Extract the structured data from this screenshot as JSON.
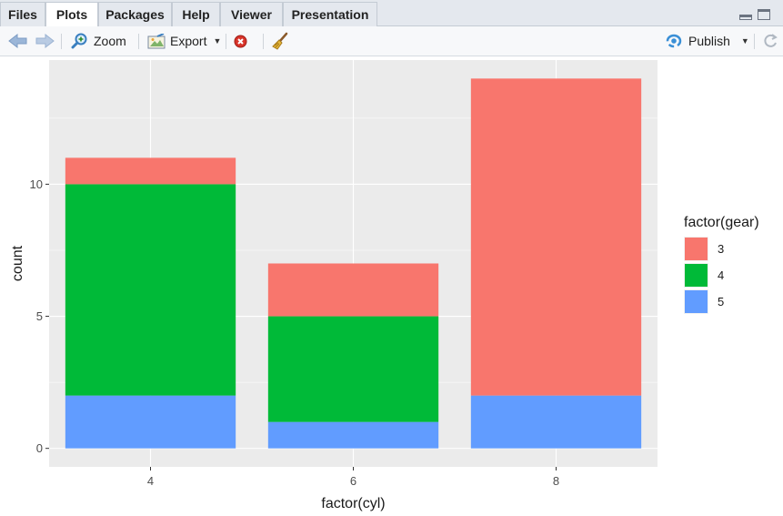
{
  "tabs": [
    {
      "label": "Files",
      "active": false
    },
    {
      "label": "Plots",
      "active": true
    },
    {
      "label": "Packages",
      "active": false
    },
    {
      "label": "Help",
      "active": false
    },
    {
      "label": "Viewer",
      "active": false
    },
    {
      "label": "Presentation",
      "active": false
    }
  ],
  "toolbar": {
    "zoom_label": "Zoom",
    "export_label": "Export",
    "publish_label": "Publish"
  },
  "colors": {
    "panel_bg": "#ebebeb",
    "grid": "#ffffff",
    "gear3": "#f8766d",
    "gear4": "#00ba38",
    "gear5": "#619cff"
  },
  "chart_data": {
    "type": "bar",
    "stacked": true,
    "categories": [
      "4",
      "6",
      "8"
    ],
    "series": [
      {
        "name": "3",
        "values": [
          1,
          2,
          12
        ]
      },
      {
        "name": "4",
        "values": [
          8,
          4,
          0
        ]
      },
      {
        "name": "5",
        "values": [
          2,
          1,
          2
        ]
      }
    ],
    "xlabel": "factor(cyl)",
    "ylabel": "count",
    "ylim": [
      -0.7,
      14.7
    ],
    "yticks": [
      0,
      5,
      10
    ],
    "legend_title": "factor(gear)",
    "legend_position": "right",
    "grid": true
  }
}
